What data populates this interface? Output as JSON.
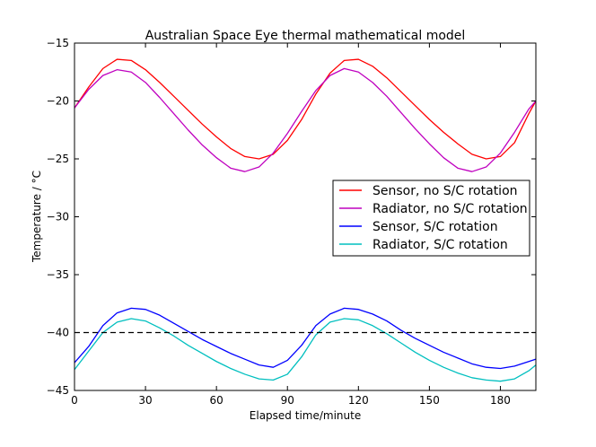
{
  "chart_data": {
    "type": "line",
    "title": "Australian Space Eye thermal mathematical model",
    "xlabel": "Elapsed time/minute",
    "ylabel": "Temperature / °C",
    "xlim": [
      0,
      195
    ],
    "ylim": [
      -45,
      -15
    ],
    "xticks": [
      0,
      30,
      60,
      90,
      120,
      150,
      180
    ],
    "yticks": [
      -15,
      -20,
      -25,
      -30,
      -35,
      -40,
      -45
    ],
    "grid": false,
    "legend_position": "center-right",
    "reference_line": {
      "y": -40,
      "style": "dashed",
      "color": "#000000"
    },
    "series": [
      {
        "name": "Sensor, no S/C rotation",
        "color": "#ff0000",
        "x": [
          0,
          6,
          12,
          18,
          24,
          30,
          36,
          42,
          48,
          54,
          60,
          66,
          72,
          78,
          84,
          90,
          96,
          102,
          108,
          114,
          120,
          126,
          132,
          138,
          144,
          150,
          156,
          162,
          168,
          174,
          180,
          186,
          192,
          195
        ],
        "values": [
          -20.6,
          -18.8,
          -17.2,
          -16.4,
          -16.5,
          -17.3,
          -18.4,
          -19.6,
          -20.8,
          -22.0,
          -23.1,
          -24.1,
          -24.8,
          -25.0,
          -24.6,
          -23.4,
          -21.6,
          -19.4,
          -17.6,
          -16.5,
          -16.4,
          -17.0,
          -18.0,
          -19.2,
          -20.4,
          -21.6,
          -22.7,
          -23.7,
          -24.6,
          -25.0,
          -24.8,
          -23.6,
          -21.1,
          -20.0
        ]
      },
      {
        "name": "Radiator, no S/C rotation",
        "color": "#bf00bf",
        "x": [
          0,
          6,
          12,
          18,
          24,
          30,
          36,
          42,
          48,
          54,
          60,
          66,
          72,
          78,
          84,
          90,
          96,
          102,
          108,
          114,
          120,
          126,
          132,
          138,
          144,
          150,
          156,
          162,
          168,
          174,
          180,
          186,
          192,
          195
        ],
        "values": [
          -20.6,
          -19.0,
          -17.8,
          -17.3,
          -17.5,
          -18.4,
          -19.7,
          -21.1,
          -22.5,
          -23.8,
          -24.9,
          -25.8,
          -26.1,
          -25.7,
          -24.5,
          -22.8,
          -20.9,
          -19.1,
          -17.8,
          -17.2,
          -17.5,
          -18.4,
          -19.6,
          -21.0,
          -22.4,
          -23.7,
          -24.9,
          -25.8,
          -26.1,
          -25.7,
          -24.5,
          -22.7,
          -20.7,
          -20.0
        ]
      },
      {
        "name": "Sensor, S/C rotation",
        "color": "#0000ff",
        "x": [
          0,
          6,
          12,
          18,
          24,
          30,
          36,
          42,
          48,
          54,
          60,
          66,
          72,
          78,
          84,
          90,
          96,
          102,
          108,
          114,
          120,
          126,
          132,
          138,
          144,
          150,
          156,
          162,
          168,
          174,
          180,
          186,
          192,
          195
        ],
        "values": [
          -42.6,
          -41.2,
          -39.4,
          -38.3,
          -37.9,
          -38.0,
          -38.5,
          -39.2,
          -39.9,
          -40.6,
          -41.2,
          -41.8,
          -42.3,
          -42.8,
          -43.0,
          -42.4,
          -41.1,
          -39.4,
          -38.4,
          -37.9,
          -38.0,
          -38.4,
          -39.0,
          -39.8,
          -40.5,
          -41.1,
          -41.7,
          -42.2,
          -42.7,
          -43.0,
          -43.1,
          -42.9,
          -42.5,
          -42.3
        ]
      },
      {
        "name": "Radiator, S/C rotation",
        "color": "#00bfbf",
        "x": [
          0,
          6,
          12,
          18,
          24,
          30,
          36,
          42,
          48,
          54,
          60,
          66,
          72,
          78,
          84,
          90,
          96,
          102,
          108,
          114,
          120,
          126,
          132,
          138,
          144,
          150,
          156,
          162,
          168,
          174,
          180,
          186,
          192,
          195
        ],
        "values": [
          -43.2,
          -41.6,
          -40.0,
          -39.1,
          -38.8,
          -39.0,
          -39.6,
          -40.3,
          -41.1,
          -41.8,
          -42.5,
          -43.1,
          -43.6,
          -44.0,
          -44.1,
          -43.6,
          -42.1,
          -40.2,
          -39.1,
          -38.8,
          -38.9,
          -39.4,
          -40.1,
          -40.9,
          -41.7,
          -42.4,
          -43.0,
          -43.5,
          -43.9,
          -44.1,
          -44.2,
          -44.0,
          -43.3,
          -42.8
        ]
      }
    ]
  }
}
